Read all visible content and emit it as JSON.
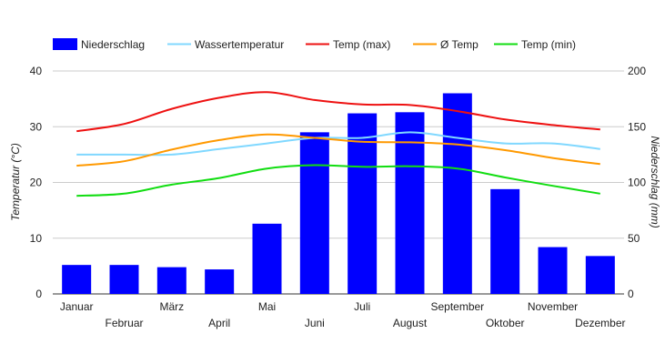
{
  "chart_data": {
    "type": "bar",
    "categories": [
      "Januar",
      "Februar",
      "März",
      "April",
      "Mai",
      "Juni",
      "Juli",
      "August",
      "September",
      "Oktober",
      "November",
      "Dezember"
    ],
    "bar_series": {
      "name": "Niederschlag",
      "axis": "right",
      "color": "#0000ff",
      "values": [
        26,
        26,
        24,
        22,
        63,
        145,
        162,
        163,
        180,
        94,
        42,
        34
      ]
    },
    "line_series": [
      {
        "name": "Wassertemperatur",
        "axis": "left",
        "color": "#80d8ff",
        "values": [
          25,
          25,
          25,
          26,
          27,
          28,
          28,
          29,
          28,
          27,
          27,
          26
        ]
      },
      {
        "name": "Temp (max)",
        "axis": "left",
        "color": "#ee1111",
        "values": [
          29.2,
          30.5,
          33.2,
          35.2,
          36.2,
          34.8,
          34.0,
          33.9,
          32.8,
          31.3,
          30.3,
          29.5
        ]
      },
      {
        "name": "Ø Temp",
        "axis": "left",
        "color": "#ff9900",
        "values": [
          23.0,
          23.8,
          25.9,
          27.6,
          28.6,
          28.0,
          27.3,
          27.2,
          26.8,
          25.8,
          24.4,
          23.3
        ]
      },
      {
        "name": "Temp (min)",
        "axis": "left",
        "color": "#11dd11",
        "values": [
          17.6,
          18.0,
          19.6,
          20.8,
          22.5,
          23.1,
          22.8,
          22.9,
          22.5,
          20.9,
          19.4,
          18.0
        ]
      }
    ],
    "legend_order": [
      "Niederschlag",
      "Wassertemperatur",
      "Temp (max)",
      "Ø Temp",
      "Temp (min)"
    ],
    "legend_position": "top",
    "ylabel_left": "Temperatur (°C)",
    "ylabel_right": "Niederschlag (mm)",
    "ylim_left": [
      0,
      40
    ],
    "yticks_left": [
      0,
      10,
      20,
      30,
      40
    ],
    "ylim_right": [
      0,
      200
    ],
    "yticks_right": [
      0,
      50,
      100,
      150,
      200
    ],
    "grid": true
  }
}
